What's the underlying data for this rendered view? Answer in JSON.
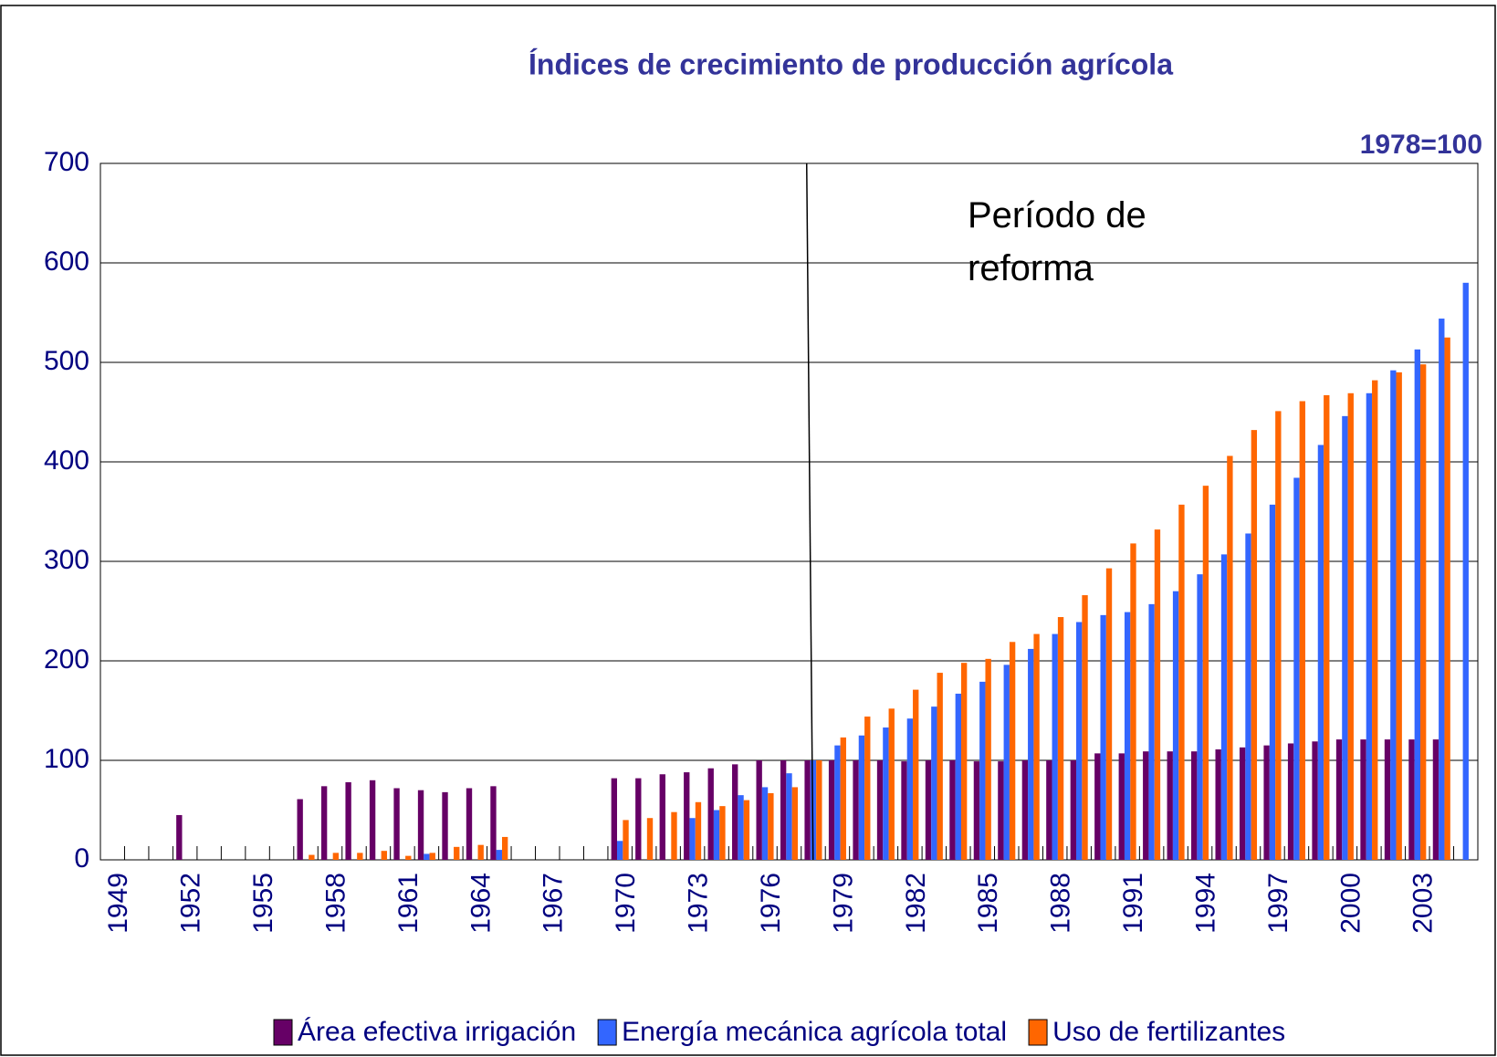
{
  "chart_data": {
    "type": "bar",
    "title": "Índices de crecimiento de producción agrícola",
    "subtitle": "1978=100",
    "annotation": "Período de reforma",
    "categories": [
      "1949",
      null,
      null,
      "1952",
      null,
      null,
      "1955",
      null,
      null,
      "1958",
      null,
      null,
      "1961",
      null,
      null,
      "1964",
      null,
      null,
      "1967",
      null,
      null,
      "1970",
      null,
      null,
      "1973",
      null,
      null,
      "1976",
      null,
      null,
      "1979",
      null,
      null,
      "1982",
      null,
      null,
      "1985",
      null,
      null,
      "1988",
      null,
      null,
      "1991",
      null,
      null,
      "1994",
      null,
      null,
      "1997",
      null,
      null,
      "2000",
      null,
      null,
      "2003",
      null,
      null
    ],
    "series": [
      {
        "name": "Área efectiva irrigación",
        "color": "#660066",
        "values": [
          null,
          null,
          null,
          45,
          null,
          null,
          null,
          null,
          61,
          74,
          78,
          80,
          72,
          70,
          68,
          72,
          74,
          null,
          null,
          null,
          null,
          82,
          82,
          86,
          88,
          92,
          96,
          100,
          100,
          100,
          100,
          100,
          100,
          99,
          100,
          100,
          99,
          99,
          100,
          100,
          100,
          107,
          107,
          109,
          109,
          109,
          111,
          113,
          115,
          117,
          119,
          121,
          121,
          121,
          121,
          121,
          null
        ]
      },
      {
        "name": "Energía mecánica agrícola total",
        "color": "#3366ff",
        "values": [
          null,
          null,
          null,
          null,
          null,
          null,
          null,
          null,
          null,
          null,
          null,
          null,
          null,
          6,
          null,
          null,
          10,
          null,
          null,
          null,
          null,
          19,
          null,
          null,
          42,
          50,
          65,
          73,
          87,
          100,
          115,
          125,
          133,
          142,
          154,
          167,
          179,
          196,
          212,
          227,
          239,
          246,
          249,
          257,
          270,
          287,
          307,
          328,
          357,
          384,
          417,
          446,
          469,
          492,
          513,
          544,
          580
        ]
      },
      {
        "name": "Uso de fertilizantes",
        "color": "#ff6600",
        "values": [
          null,
          null,
          null,
          null,
          null,
          null,
          null,
          null,
          5,
          7,
          7,
          9,
          4,
          7,
          13,
          15,
          23,
          null,
          null,
          null,
          null,
          40,
          42,
          48,
          58,
          54,
          60,
          67,
          73,
          100,
          123,
          144,
          152,
          171,
          188,
          198,
          202,
          219,
          227,
          244,
          266,
          293,
          318,
          332,
          357,
          376,
          406,
          432,
          451,
          461,
          467,
          469,
          482,
          490,
          498,
          525,
          null
        ]
      }
    ],
    "ylim": [
      0,
      700
    ],
    "yticks": [
      0,
      100,
      200,
      300,
      400,
      500,
      600,
      700
    ],
    "grid": true,
    "legend": "bottom"
  }
}
